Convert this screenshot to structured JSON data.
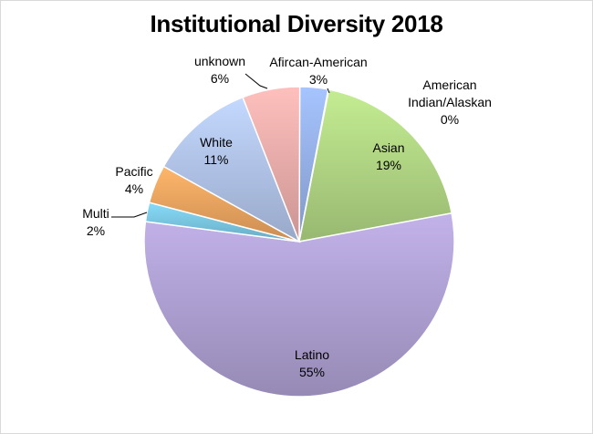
{
  "chart_data": {
    "type": "pie",
    "title": "Institutional Diversity 2018",
    "slices": [
      {
        "name": "Afircan-American",
        "value": 3,
        "label": "3%",
        "color": "#9db9f3"
      },
      {
        "name": "American Indian/Alaskan",
        "value": 0,
        "label": "0%",
        "color": "#e8837c"
      },
      {
        "name": "Asian",
        "value": 19,
        "label": "19%",
        "color": "#b9e08a"
      },
      {
        "name": "Latino",
        "value": 55,
        "label": "55%",
        "color": "#b7a8dd"
      },
      {
        "name": "Multi",
        "value": 2,
        "label": "2%",
        "color": "#7fd0ec"
      },
      {
        "name": "Pacific",
        "value": 4,
        "label": "4%",
        "color": "#f8ac64"
      },
      {
        "name": "White",
        "value": 11,
        "label": "11%",
        "color": "#b9cdf5"
      },
      {
        "name": "unknown",
        "value": 6,
        "label": "6%",
        "color": "#f6b5b2"
      }
    ],
    "start": "12 o'clock",
    "direction": "clockwise",
    "legend": "none"
  }
}
